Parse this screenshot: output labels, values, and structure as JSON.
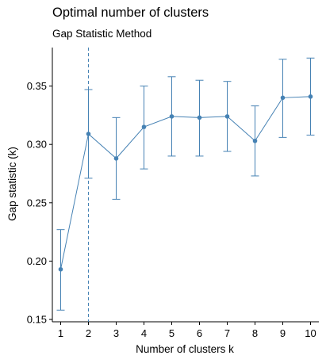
{
  "chart_data": {
    "type": "line",
    "title": "Optimal number of clusters",
    "subtitle": "Gap Statistic Method",
    "xlabel": "Number of clusters k",
    "ylabel": "Gap statistic (k)",
    "x": [
      1,
      2,
      3,
      4,
      5,
      6,
      7,
      8,
      9,
      10
    ],
    "x_ticks": [
      "1",
      "2",
      "3",
      "4",
      "5",
      "6",
      "7",
      "8",
      "9",
      "10"
    ],
    "y_ticks": [
      "0.15",
      "0.20",
      "0.25",
      "0.30",
      "0.35"
    ],
    "y_tick_values": [
      0.15,
      0.2,
      0.25,
      0.3,
      0.35
    ],
    "xlim": [
      0.7,
      10.3
    ],
    "ylim": [
      0.148,
      0.383
    ],
    "series": [
      {
        "values": [
          0.193,
          0.309,
          0.288,
          0.315,
          0.324,
          0.323,
          0.324,
          0.303,
          0.34,
          0.341
        ],
        "error_low": [
          0.158,
          0.271,
          0.253,
          0.279,
          0.29,
          0.29,
          0.294,
          0.273,
          0.306,
          0.308
        ],
        "error_high": [
          0.227,
          0.347,
          0.323,
          0.35,
          0.358,
          0.355,
          0.354,
          0.333,
          0.373,
          0.374
        ]
      }
    ],
    "optimal_k": 2,
    "grid": false,
    "colors": {
      "series": "#4682B4",
      "axis": "#000000"
    }
  }
}
